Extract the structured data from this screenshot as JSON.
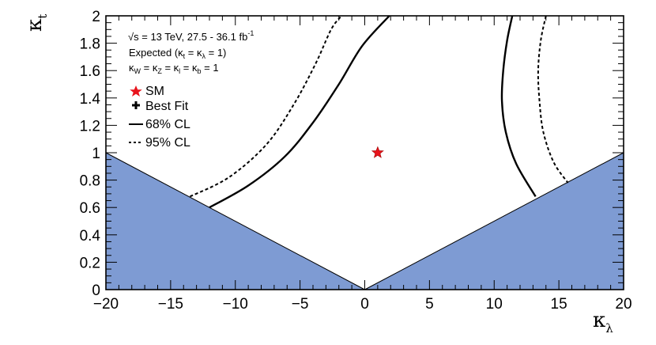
{
  "chart_data": {
    "type": "contour",
    "xlabel": "κλ",
    "ylabel": "κt",
    "xlim": [
      -20,
      20
    ],
    "ylim": [
      0,
      2
    ],
    "x_ticks": [
      "−20",
      "−15",
      "−10",
      "−5",
      "0",
      "5",
      "10",
      "15",
      "20"
    ],
    "y_ticks": [
      "0",
      "0.2",
      "0.4",
      "0.6",
      "0.8",
      "1",
      "1.2",
      "1.4",
      "1.6",
      "1.8",
      "2"
    ],
    "annotations": {
      "energy_line": "√s = 13 TeV, 27.5 - 36.1 fb",
      "energy_sup": "-1",
      "expected_line": "Expected (κt = κλ = 1)",
      "couplings_line": "κW = κZ = κl = κb = 1"
    },
    "legend": {
      "placement": "top-left",
      "entries": [
        {
          "label": "SM",
          "marker": "red-star"
        },
        {
          "label": "Best Fit",
          "marker": "black-cross"
        },
        {
          "label": "68% CL",
          "style": "solid"
        },
        {
          "label": "95% CL",
          "style": "dashed"
        }
      ]
    },
    "excluded_region": {
      "color": "#7e9bd3",
      "polygons": [
        [
          [
            -20,
            0
          ],
          [
            -20,
            1.0
          ],
          [
            0,
            0
          ]
        ],
        [
          [
            0,
            0
          ],
          [
            20,
            1.0
          ],
          [
            20,
            0
          ]
        ]
      ]
    },
    "sm_point": {
      "x": 1,
      "y": 1,
      "color": "#e8141c"
    },
    "contours": [
      {
        "level": "68% CL",
        "style": "solid",
        "points": [
          [
            -12.0,
            0.6
          ],
          [
            -9.0,
            0.76
          ],
          [
            -6.2,
            0.97
          ],
          [
            -4.0,
            1.22
          ],
          [
            -2.0,
            1.5
          ],
          [
            -0.2,
            1.78
          ],
          [
            1.9,
            2.0
          ]
        ]
      },
      {
        "level": "68% CL",
        "style": "solid",
        "points": [
          [
            11.4,
            2.0
          ],
          [
            11.0,
            1.82
          ],
          [
            10.7,
            1.6
          ],
          [
            10.6,
            1.38
          ],
          [
            10.9,
            1.15
          ],
          [
            11.7,
            0.92
          ],
          [
            13.2,
            0.68
          ]
        ]
      },
      {
        "level": "95% CL",
        "style": "dashed",
        "points": [
          [
            -13.5,
            0.68
          ],
          [
            -10.5,
            0.82
          ],
          [
            -7.6,
            1.06
          ],
          [
            -5.5,
            1.35
          ],
          [
            -3.8,
            1.65
          ],
          [
            -2.6,
            1.9
          ],
          [
            -1.8,
            2.0
          ]
        ]
      },
      {
        "level": "95% CL",
        "style": "dashed",
        "points": [
          [
            14.0,
            2.0
          ],
          [
            13.6,
            1.82
          ],
          [
            13.4,
            1.6
          ],
          [
            13.5,
            1.38
          ],
          [
            13.8,
            1.15
          ],
          [
            14.6,
            0.93
          ],
          [
            15.7,
            0.78
          ]
        ]
      }
    ]
  }
}
